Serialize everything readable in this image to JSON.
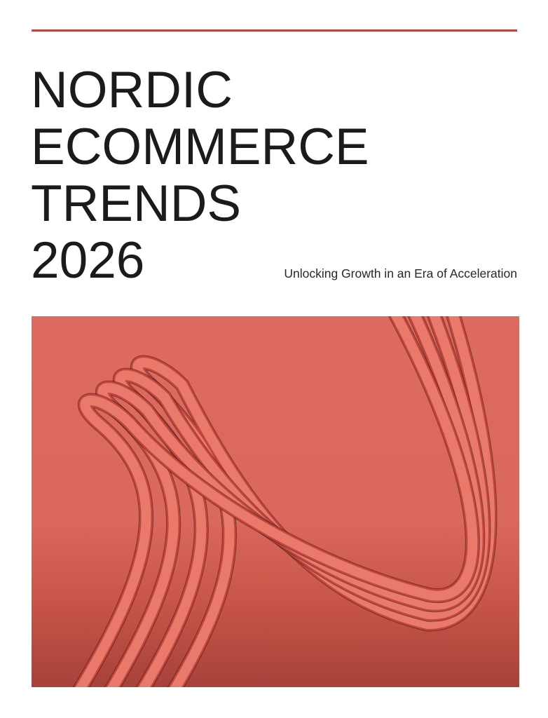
{
  "cover": {
    "title_lines": [
      "NORDIC",
      "ECOMMERCE",
      "TRENDS",
      "2026"
    ],
    "subtitle": "Unlocking Growth in an Era of Acceleration",
    "colors": {
      "accent_rule": "#b5473d",
      "artwork_top": "#dc6a5e",
      "artwork_bottom": "#a6423a",
      "ribbon": "#e8796b",
      "ribbon_shadow": "#c2443a",
      "text": "#1c1a1a"
    },
    "artwork": "abstract-red-ribbons"
  }
}
